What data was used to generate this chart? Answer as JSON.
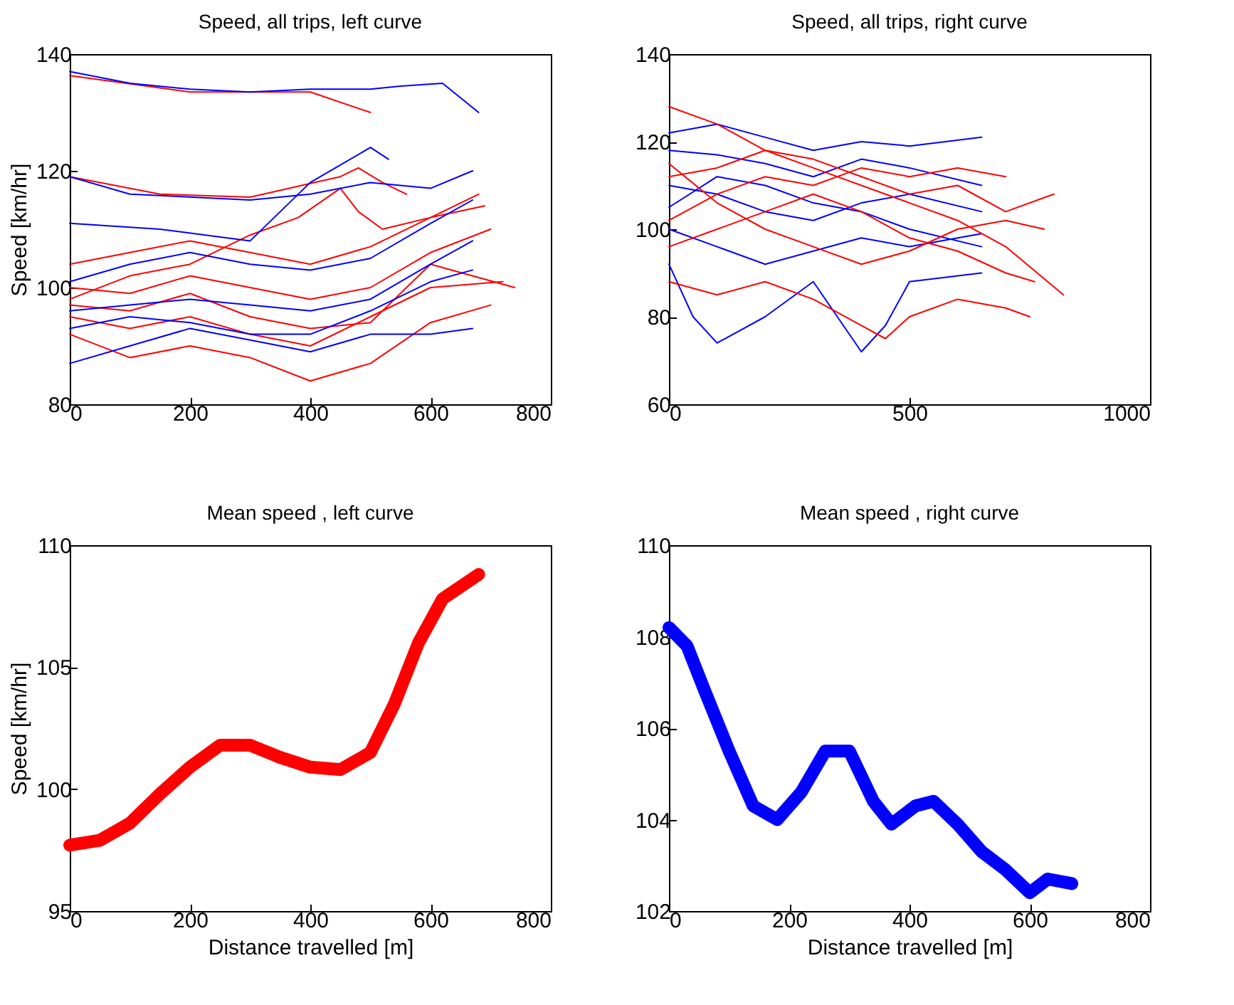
{
  "chart_data": [
    {
      "type": "line",
      "title": "Speed, all trips, left curve",
      "ylabel": "Speed [km/hr]",
      "xlim": [
        0,
        800
      ],
      "xticks": [
        0,
        200,
        400,
        600,
        800
      ],
      "ylim": [
        80,
        140
      ],
      "yticks": [
        80,
        100,
        120,
        140
      ],
      "series": [
        {
          "color": "#ff0000",
          "x": [
            0,
            100,
            200,
            300,
            400,
            500,
            600,
            700
          ],
          "values": [
            100,
            99,
            102,
            100,
            98,
            100,
            106,
            110
          ]
        },
        {
          "color": "#ff0000",
          "x": [
            0,
            100,
            200,
            300,
            400,
            500,
            600,
            720
          ],
          "values": [
            95,
            93,
            95,
            92,
            90,
            95,
            100,
            101
          ]
        },
        {
          "color": "#ff0000",
          "x": [
            0,
            100,
            200,
            300,
            400,
            500,
            600,
            700
          ],
          "values": [
            92,
            88,
            90,
            88,
            84,
            87,
            94,
            97
          ]
        },
        {
          "color": "#ff0000",
          "x": [
            0,
            100,
            200,
            300,
            400,
            500,
            600,
            690
          ],
          "values": [
            104,
            106,
            108,
            106,
            104,
            107,
            112,
            114
          ]
        },
        {
          "color": "#ff0000",
          "x": [
            0,
            100,
            200,
            300,
            380,
            450,
            480,
            520,
            600,
            680
          ],
          "values": [
            98,
            102,
            104,
            109,
            112,
            117,
            113,
            110,
            112,
            116
          ]
        },
        {
          "color": "#ff0000",
          "x": [
            0,
            100,
            200,
            300,
            400,
            500,
            600,
            740
          ],
          "values": [
            97,
            96,
            99,
            95,
            93,
            94,
            104,
            100
          ]
        },
        {
          "color": "#ff0000",
          "x": [
            0,
            150,
            300,
            450,
            480,
            520,
            560
          ],
          "values": [
            119,
            116,
            115.5,
            119,
            120.5,
            118,
            116
          ]
        },
        {
          "color": "#ff0000",
          "x": [
            0,
            200,
            400,
            500
          ],
          "values": [
            136.3,
            133.5,
            133.5,
            130
          ]
        },
        {
          "color": "#0000ff",
          "x": [
            0,
            100,
            200,
            300,
            400,
            500,
            600,
            670
          ],
          "values": [
            101,
            104,
            106,
            104,
            103,
            105,
            111,
            115
          ]
        },
        {
          "color": "#0000ff",
          "x": [
            0,
            100,
            200,
            300,
            400,
            500,
            600,
            670
          ],
          "values": [
            96,
            97,
            98,
            97,
            96,
            98,
            104,
            108
          ]
        },
        {
          "color": "#0000ff",
          "x": [
            0,
            100,
            200,
            300,
            400,
            500,
            600,
            670
          ],
          "values": [
            87,
            90,
            93,
            91,
            89,
            92,
            92,
            93
          ]
        },
        {
          "color": "#0000ff",
          "x": [
            0,
            100,
            200,
            300,
            400,
            500,
            600,
            670
          ],
          "values": [
            93,
            95,
            94,
            92,
            92,
            96,
            101,
            103
          ]
        },
        {
          "color": "#0000ff",
          "x": [
            0,
            150,
            300,
            400,
            500,
            530
          ],
          "values": [
            111,
            110,
            108,
            118,
            124,
            122
          ]
        },
        {
          "color": "#0000ff",
          "x": [
            0,
            100,
            300,
            400,
            500,
            600,
            670
          ],
          "values": [
            119,
            116,
            115,
            116,
            118,
            117,
            120
          ]
        },
        {
          "color": "#0000ff",
          "x": [
            0,
            100,
            200,
            300,
            400,
            500,
            550,
            620,
            680
          ],
          "values": [
            137,
            135,
            134,
            133.5,
            134,
            134,
            134.5,
            135,
            130
          ]
        }
      ]
    },
    {
      "type": "line",
      "title": "Speed, all trips, right curve",
      "xlim": [
        0,
        1000
      ],
      "xticks": [
        0,
        500,
        1000
      ],
      "ylim": [
        60,
        140
      ],
      "yticks": [
        60,
        80,
        100,
        120,
        140
      ],
      "series": [
        {
          "color": "#0000ff",
          "x": [
            0,
            100,
            200,
            300,
            400,
            500,
            650
          ],
          "values": [
            118,
            117,
            115,
            112,
            116,
            114,
            110
          ]
        },
        {
          "color": "#0000ff",
          "x": [
            0,
            100,
            200,
            300,
            400,
            500,
            650
          ],
          "values": [
            110,
            108,
            104,
            102,
            106,
            108,
            104
          ]
        },
        {
          "color": "#0000ff",
          "x": [
            0,
            100,
            200,
            300,
            400,
            500,
            650
          ],
          "values": [
            100,
            96,
            92,
            95,
            98,
            96,
            99
          ]
        },
        {
          "color": "#0000ff",
          "x": [
            0,
            50,
            100,
            200,
            300,
            400,
            450,
            500,
            650
          ],
          "values": [
            92,
            80,
            74,
            80,
            88,
            72,
            78,
            88,
            90
          ]
        },
        {
          "color": "#0000ff",
          "x": [
            0,
            100,
            200,
            300,
            400,
            500,
            650
          ],
          "values": [
            122,
            124,
            121,
            118,
            120,
            119,
            121
          ]
        },
        {
          "color": "#0000ff",
          "x": [
            0,
            100,
            200,
            300,
            400,
            500,
            650
          ],
          "values": [
            105,
            112,
            110,
            106,
            104,
            100,
            96
          ]
        },
        {
          "color": "#ff0000",
          "x": [
            0,
            100,
            200,
            300,
            400,
            500,
            600,
            700,
            800
          ],
          "values": [
            128,
            124,
            118,
            116,
            112,
            108,
            110,
            104,
            108
          ]
        },
        {
          "color": "#ff0000",
          "x": [
            0,
            100,
            200,
            300,
            400,
            500,
            600,
            700,
            820
          ],
          "values": [
            112,
            114,
            118,
            114,
            110,
            106,
            102,
            96,
            85
          ]
        },
        {
          "color": "#ff0000",
          "x": [
            0,
            100,
            200,
            300,
            400,
            500,
            600,
            700,
            760
          ],
          "values": [
            96,
            100,
            104,
            108,
            104,
            98,
            95,
            90,
            88
          ]
        },
        {
          "color": "#ff0000",
          "x": [
            0,
            100,
            200,
            300,
            400,
            450,
            500,
            600,
            700,
            750
          ],
          "values": [
            88,
            85,
            88,
            84,
            78,
            75,
            80,
            84,
            82,
            80
          ]
        },
        {
          "color": "#ff0000",
          "x": [
            0,
            100,
            200,
            300,
            400,
            500,
            600,
            700,
            780
          ],
          "values": [
            115,
            106,
            100,
            96,
            92,
            95,
            100,
            102,
            100
          ]
        },
        {
          "color": "#ff0000",
          "x": [
            0,
            100,
            200,
            300,
            400,
            500,
            600,
            700
          ],
          "values": [
            102,
            108,
            112,
            110,
            114,
            112,
            114,
            112
          ]
        }
      ]
    },
    {
      "type": "line",
      "title": "Mean speed , left curve",
      "xlabel": "Distance travelled [m]",
      "ylabel": "Speed [km/hr]",
      "xlim": [
        0,
        800
      ],
      "xticks": [
        0,
        200,
        400,
        600,
        800
      ],
      "ylim": [
        95,
        110
      ],
      "yticks": [
        95,
        100,
        105,
        110
      ],
      "series": [
        {
          "color": "#ff0000",
          "x": [
            0,
            50,
            100,
            150,
            200,
            250,
            300,
            350,
            400,
            450,
            500,
            540,
            580,
            620,
            680
          ],
          "values": [
            97.7,
            97.9,
            98.6,
            99.8,
            100.9,
            101.8,
            101.8,
            101.3,
            100.9,
            100.8,
            101.5,
            103.5,
            106,
            107.8,
            108.8
          ]
        }
      ]
    },
    {
      "type": "line",
      "title": "Mean speed , right curve",
      "xlabel": "Distance travelled [m]",
      "xlim": [
        0,
        800
      ],
      "xticks": [
        0,
        200,
        400,
        600,
        800
      ],
      "ylim": [
        102,
        110
      ],
      "yticks": [
        102,
        104,
        106,
        108,
        110
      ],
      "series": [
        {
          "color": "#0000ff",
          "x": [
            0,
            30,
            60,
            100,
            140,
            180,
            220,
            260,
            300,
            340,
            370,
            410,
            440,
            480,
            520,
            560,
            600,
            630,
            670
          ],
          "values": [
            108.2,
            107.8,
            106.8,
            105.5,
            104.3,
            104,
            104.6,
            105.5,
            105.5,
            104.4,
            103.9,
            104.3,
            104.4,
            103.9,
            103.3,
            102.9,
            102.4,
            102.7,
            102.6
          ]
        }
      ]
    }
  ]
}
